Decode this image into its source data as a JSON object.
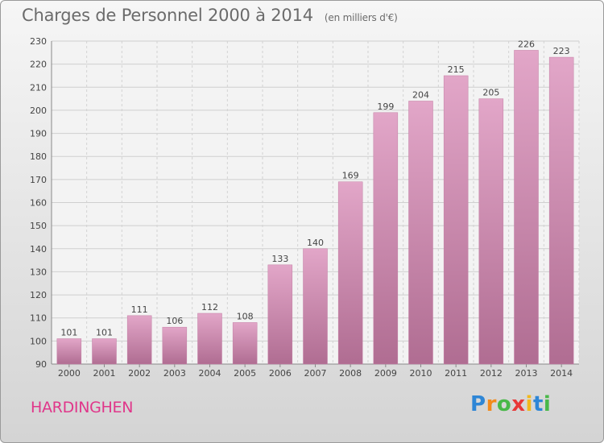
{
  "header": {
    "title": "Charges de Personnel 2000 à 2014",
    "subtitle": "(en milliers d'€)"
  },
  "footer": {
    "place": "HARDINGHEN",
    "logo": "Proxiti"
  },
  "chart_data": {
    "type": "bar",
    "title": "Charges de Personnel 2000 à 2014",
    "subtitle": "(en milliers d'€)",
    "categories": [
      "2000",
      "2001",
      "2002",
      "2003",
      "2004",
      "2005",
      "2006",
      "2007",
      "2008",
      "2009",
      "2010",
      "2011",
      "2012",
      "2013",
      "2014"
    ],
    "values": [
      101,
      101,
      111,
      106,
      112,
      108,
      133,
      140,
      169,
      199,
      204,
      215,
      205,
      226,
      223
    ],
    "xlabel": "",
    "ylabel": "",
    "ylim": [
      90,
      230
    ],
    "yticks": [
      90,
      100,
      110,
      120,
      130,
      140,
      150,
      160,
      170,
      180,
      190,
      200,
      210,
      220,
      230
    ],
    "grid": true,
    "bar_color": "#d58bb4"
  }
}
